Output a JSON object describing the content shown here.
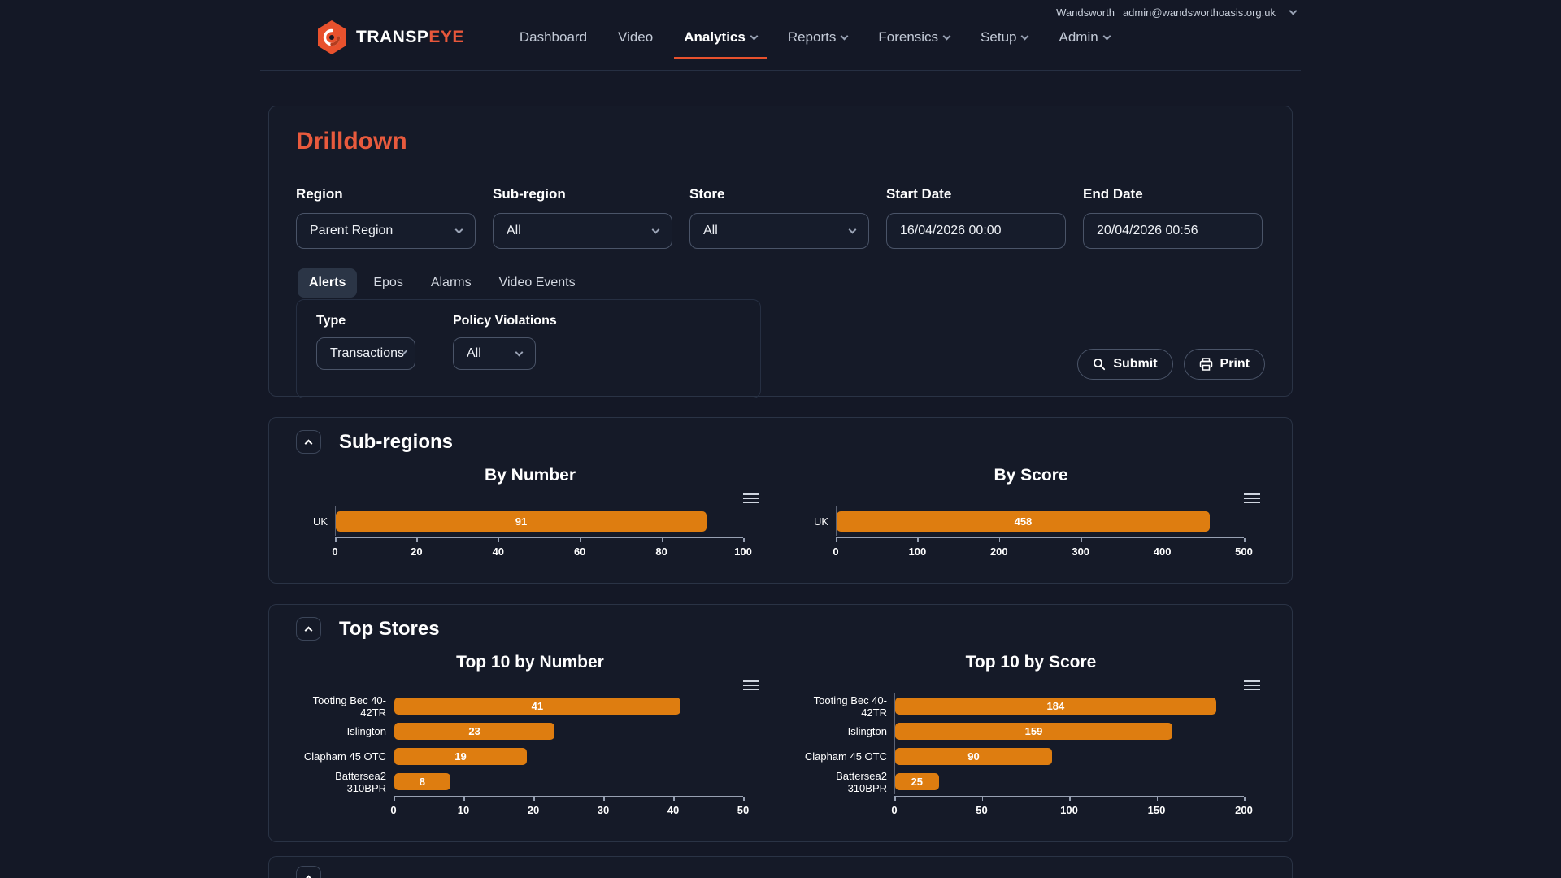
{
  "colors": {
    "accent_orange": "#e8512d",
    "title_orange": "#e85a3d",
    "bar_orange": "#de7d10",
    "background": "#141826"
  },
  "header": {
    "brand": {
      "primary": "TRANSP",
      "accent": "EYE"
    },
    "nav": [
      {
        "label": "Dashboard",
        "dropdown": false,
        "active": false
      },
      {
        "label": "Video",
        "dropdown": false,
        "active": false
      },
      {
        "label": "Analytics",
        "dropdown": true,
        "active": true
      },
      {
        "label": "Reports",
        "dropdown": true,
        "active": false
      },
      {
        "label": "Forensics",
        "dropdown": true,
        "active": false
      },
      {
        "label": "Setup",
        "dropdown": true,
        "active": false
      },
      {
        "label": "Admin",
        "dropdown": true,
        "active": false
      }
    ],
    "user": {
      "name": "Wandsworth",
      "email": "admin@wandsworthoasis.org.uk"
    }
  },
  "filters": {
    "title": "Drilldown",
    "fields": [
      {
        "label": "Region",
        "value": "Parent Region"
      },
      {
        "label": "Sub-region",
        "value": "All"
      },
      {
        "label": "Store",
        "value": "All"
      },
      {
        "label": "Start Date",
        "value": "16/04/2026 00:00"
      },
      {
        "label": "End Date",
        "value": "20/04/2026 00:56"
      }
    ],
    "tabs": [
      {
        "label": "Alerts",
        "active": true
      },
      {
        "label": "Epos",
        "active": false
      },
      {
        "label": "Alarms",
        "active": false
      },
      {
        "label": "Video Events",
        "active": false
      }
    ],
    "panel": {
      "type_label": "Type",
      "type_value": "Transactions",
      "policy_label": "Policy Violations",
      "policy_value": "All"
    },
    "actions": {
      "submit": "Submit",
      "print": "Print"
    }
  },
  "sections": {
    "sub_regions": {
      "title": "Sub-regions"
    },
    "top_stores": {
      "title": "Top Stores"
    }
  },
  "chart_data": [
    {
      "type": "bar",
      "orientation": "horizontal",
      "section": "Sub-regions",
      "title": "By Number",
      "categories": [
        "UK"
      ],
      "values": [
        91
      ],
      "xlim": [
        0,
        100
      ],
      "ticks": [
        0,
        20,
        40,
        60,
        80,
        100
      ]
    },
    {
      "type": "bar",
      "orientation": "horizontal",
      "section": "Sub-regions",
      "title": "By Score",
      "categories": [
        "UK"
      ],
      "values": [
        458
      ],
      "xlim": [
        0,
        500
      ],
      "ticks": [
        0,
        100,
        200,
        300,
        400,
        500
      ]
    },
    {
      "type": "bar",
      "orientation": "horizontal",
      "section": "Top Stores",
      "title": "Top 10 by Number",
      "categories": [
        "Tooting Bec 40-42TR",
        "Islington",
        "Clapham 45 OTC",
        "Battersea2 310BPR"
      ],
      "values": [
        41,
        23,
        19,
        8
      ],
      "xlim": [
        0,
        50
      ],
      "ticks": [
        0,
        10,
        20,
        30,
        40,
        50
      ]
    },
    {
      "type": "bar",
      "orientation": "horizontal",
      "section": "Top Stores",
      "title": "Top 10 by Score",
      "categories": [
        "Tooting Bec 40-42TR",
        "Islington",
        "Clapham 45 OTC",
        "Battersea2 310BPR"
      ],
      "values": [
        184,
        159,
        90,
        25
      ],
      "xlim": [
        0,
        200
      ],
      "ticks": [
        0,
        50,
        100,
        150,
        200
      ]
    }
  ]
}
